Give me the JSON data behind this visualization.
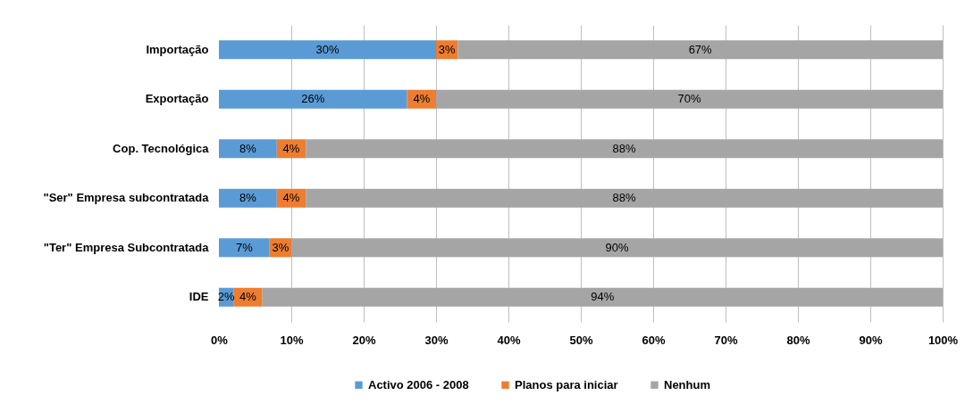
{
  "chart_data": {
    "type": "bar",
    "orientation": "horizontal",
    "stacked": true,
    "categories": [
      "Importação",
      "Exportação",
      "Cop. Tecnológica",
      "\"Ser\" Empresa subcontratada",
      "\"Ter\" Empresa Subcontratada",
      "IDE"
    ],
    "series": [
      {
        "name": "Activo 2006 - 2008",
        "color": "#5b9bd5",
        "values": [
          30,
          26,
          8,
          8,
          7,
          2
        ],
        "value_labels": [
          "30%",
          "26%",
          "8%",
          "8%",
          "7%",
          "2%"
        ]
      },
      {
        "name": "Planos para iniciar",
        "color": "#ed7d31",
        "values": [
          3,
          4,
          4,
          4,
          3,
          4
        ],
        "value_labels": [
          "3%",
          "4%",
          "4%",
          "4%",
          "3%",
          "4%"
        ]
      },
      {
        "name": "Nenhum",
        "color": "#a5a5a5",
        "values": [
          67,
          70,
          88,
          88,
          90,
          94
        ],
        "value_labels": [
          "67%",
          "70%",
          "88%",
          "88%",
          "90%",
          "94%"
        ]
      }
    ],
    "xlim": [
      0,
      100
    ],
    "xticks": [
      {
        "value": 0,
        "label": "0%"
      },
      {
        "value": 10,
        "label": "10%"
      },
      {
        "value": 20,
        "label": "20%"
      },
      {
        "value": 30,
        "label": "30%"
      },
      {
        "value": 40,
        "label": "40%"
      },
      {
        "value": 50,
        "label": "50%"
      },
      {
        "value": 60,
        "label": "60%"
      },
      {
        "value": 70,
        "label": "70%"
      },
      {
        "value": 80,
        "label": "80%"
      },
      {
        "value": 90,
        "label": "90%"
      },
      {
        "value": 100,
        "label": "100%"
      }
    ],
    "grid": "x",
    "legend": "bottom"
  }
}
